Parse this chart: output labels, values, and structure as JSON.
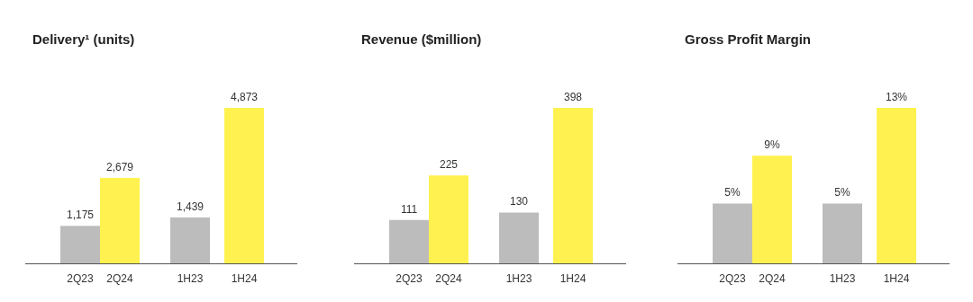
{
  "chart_data": [
    {
      "type": "bar",
      "title": "Delivery¹ (units)",
      "categories": [
        "2Q23",
        "2Q24",
        "1H23",
        "1H24"
      ],
      "values": [
        1175,
        2679,
        1439,
        4873
      ],
      "colors": [
        "#bcbcbc",
        "#fff250",
        "#bcbcbc",
        "#fff250"
      ],
      "value_labels": [
        "1,175",
        "2,679",
        "1,439",
        "4,873"
      ],
      "ylim": [
        0,
        4873
      ]
    },
    {
      "type": "bar",
      "title": "Revenue ($million)",
      "categories": [
        "2Q23",
        "2Q24",
        "1H23",
        "1H24"
      ],
      "values": [
        111,
        225,
        130,
        398
      ],
      "colors": [
        "#bcbcbc",
        "#fff250",
        "#bcbcbc",
        "#fff250"
      ],
      "value_labels": [
        "111",
        "225",
        "130",
        "398"
      ],
      "ylim": [
        0,
        398
      ]
    },
    {
      "type": "bar",
      "title": "Gross Profit Margin",
      "categories": [
        "2Q23",
        "2Q24",
        "1H23",
        "1H24"
      ],
      "values": [
        5,
        9,
        5,
        13
      ],
      "colors": [
        "#bcbcbc",
        "#fff250",
        "#bcbcbc",
        "#fff250"
      ],
      "value_labels": [
        "5%",
        "9%",
        "5%",
        "13%"
      ],
      "ylim": [
        0,
        13
      ]
    }
  ]
}
